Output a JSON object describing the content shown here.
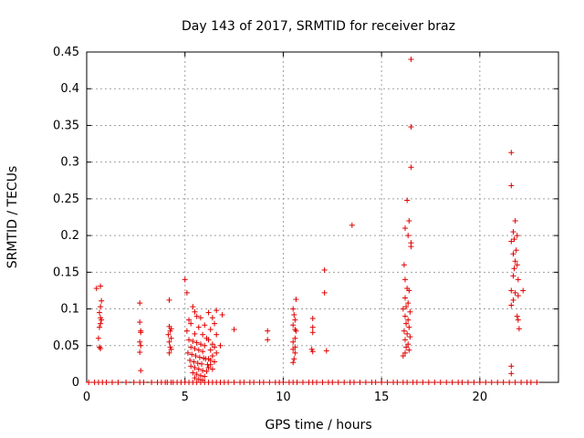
{
  "chart_data": {
    "type": "scatter",
    "title": "Day 143 of 2017, SRMTID for receiver braz",
    "xlabel": "GPS time / hours",
    "ylabel": "SRMTID / TECUs",
    "xlim": [
      0,
      24
    ],
    "ylim": [
      0,
      0.45
    ],
    "xticks": [
      0,
      5,
      10,
      15,
      20
    ],
    "yticks": [
      0,
      0.05,
      0.1,
      0.15,
      0.2,
      0.25,
      0.3,
      0.35,
      0.4,
      0.45
    ],
    "xtick_labels": [
      "0",
      "5",
      "10",
      "15",
      "20"
    ],
    "ytick_labels": [
      "0",
      "0.05",
      "0.1",
      "0.15",
      "0.2",
      "0.25",
      "0.3",
      "0.35",
      "0.4",
      "0.45"
    ],
    "grid": true,
    "marker": "+",
    "series": [
      {
        "name": "SRMTID",
        "color": "#e00000",
        "points": [
          [
            0.5,
            0.128
          ],
          [
            0.7,
            0.131
          ],
          [
            0.75,
            0.111
          ],
          [
            0.7,
            0.103
          ],
          [
            0.65,
            0.095
          ],
          [
            0.7,
            0.088
          ],
          [
            0.75,
            0.085
          ],
          [
            0.7,
            0.08
          ],
          [
            0.65,
            0.075
          ],
          [
            0.6,
            0.06
          ],
          [
            0.65,
            0.048
          ],
          [
            0.7,
            0.046
          ],
          [
            2.7,
            0.108
          ],
          [
            2.7,
            0.082
          ],
          [
            2.75,
            0.07
          ],
          [
            2.75,
            0.068
          ],
          [
            2.7,
            0.055
          ],
          [
            2.75,
            0.05
          ],
          [
            2.7,
            0.041
          ],
          [
            2.75,
            0.016
          ],
          [
            4.2,
            0.112
          ],
          [
            4.2,
            0.076
          ],
          [
            4.3,
            0.073
          ],
          [
            4.25,
            0.07
          ],
          [
            4.15,
            0.065
          ],
          [
            4.3,
            0.06
          ],
          [
            4.2,
            0.055
          ],
          [
            4.25,
            0.048
          ],
          [
            4.3,
            0.045
          ],
          [
            4.2,
            0.04
          ],
          [
            5.0,
            0.14
          ],
          [
            5.1,
            0.122
          ],
          [
            5.4,
            0.103
          ],
          [
            5.5,
            0.096
          ],
          [
            5.6,
            0.09
          ],
          [
            5.2,
            0.085
          ],
          [
            5.3,
            0.08
          ],
          [
            5.8,
            0.088
          ],
          [
            6.0,
            0.078
          ],
          [
            5.7,
            0.075
          ],
          [
            5.1,
            0.07
          ],
          [
            5.5,
            0.066
          ],
          [
            5.9,
            0.065
          ],
          [
            6.1,
            0.06
          ],
          [
            5.2,
            0.058
          ],
          [
            5.4,
            0.056
          ],
          [
            5.6,
            0.054
          ],
          [
            5.8,
            0.052
          ],
          [
            6.0,
            0.05
          ],
          [
            5.3,
            0.048
          ],
          [
            5.5,
            0.046
          ],
          [
            5.7,
            0.044
          ],
          [
            5.9,
            0.042
          ],
          [
            5.15,
            0.04
          ],
          [
            5.35,
            0.038
          ],
          [
            5.55,
            0.036
          ],
          [
            5.75,
            0.034
          ],
          [
            5.95,
            0.033
          ],
          [
            6.05,
            0.032
          ],
          [
            5.25,
            0.03
          ],
          [
            5.45,
            0.028
          ],
          [
            5.65,
            0.026
          ],
          [
            5.85,
            0.025
          ],
          [
            6.15,
            0.024
          ],
          [
            5.3,
            0.022
          ],
          [
            5.5,
            0.02
          ],
          [
            5.7,
            0.018
          ],
          [
            5.9,
            0.016
          ],
          [
            6.1,
            0.015
          ],
          [
            5.4,
            0.013
          ],
          [
            5.6,
            0.011
          ],
          [
            5.8,
            0.009
          ],
          [
            6.0,
            0.008
          ],
          [
            5.5,
            0.006
          ],
          [
            5.7,
            0.004
          ],
          [
            5.9,
            0.003
          ],
          [
            6.2,
            0.02
          ],
          [
            6.3,
            0.03
          ],
          [
            6.2,
            0.095
          ],
          [
            6.4,
            0.088
          ],
          [
            6.5,
            0.08
          ],
          [
            6.3,
            0.072
          ],
          [
            6.6,
            0.065
          ],
          [
            6.2,
            0.058
          ],
          [
            6.4,
            0.052
          ],
          [
            6.5,
            0.048
          ],
          [
            6.3,
            0.044
          ],
          [
            6.6,
            0.04
          ],
          [
            6.4,
            0.036
          ],
          [
            6.2,
            0.032
          ],
          [
            6.5,
            0.028
          ],
          [
            6.3,
            0.024
          ],
          [
            6.4,
            0.018
          ],
          [
            6.6,
            0.098
          ],
          [
            6.9,
            0.092
          ],
          [
            6.8,
            0.05
          ],
          [
            7.5,
            0.072
          ],
          [
            9.2,
            0.07
          ],
          [
            9.2,
            0.058
          ],
          [
            10.5,
            0.1
          ],
          [
            10.6,
            0.085
          ],
          [
            10.5,
            0.078
          ],
          [
            10.6,
            0.072
          ],
          [
            10.65,
            0.07
          ],
          [
            10.6,
            0.06
          ],
          [
            10.5,
            0.055
          ],
          [
            10.6,
            0.048
          ],
          [
            10.5,
            0.045
          ],
          [
            10.6,
            0.04
          ],
          [
            10.55,
            0.032
          ],
          [
            10.5,
            0.027
          ],
          [
            10.65,
            0.113
          ],
          [
            10.55,
            0.092
          ],
          [
            11.5,
            0.087
          ],
          [
            11.5,
            0.075
          ],
          [
            11.5,
            0.068
          ],
          [
            11.45,
            0.045
          ],
          [
            11.5,
            0.042
          ],
          [
            12.1,
            0.153
          ],
          [
            12.1,
            0.122
          ],
          [
            12.2,
            0.043
          ],
          [
            13.5,
            0.214
          ],
          [
            16.5,
            0.44
          ],
          [
            16.5,
            0.348
          ],
          [
            16.5,
            0.293
          ],
          [
            16.3,
            0.248
          ],
          [
            16.4,
            0.22
          ],
          [
            16.2,
            0.21
          ],
          [
            16.35,
            0.2
          ],
          [
            16.5,
            0.19
          ],
          [
            16.5,
            0.185
          ],
          [
            16.15,
            0.16
          ],
          [
            16.2,
            0.14
          ],
          [
            16.3,
            0.128
          ],
          [
            16.4,
            0.125
          ],
          [
            16.2,
            0.115
          ],
          [
            16.35,
            0.108
          ],
          [
            16.25,
            0.103
          ],
          [
            16.1,
            0.1
          ],
          [
            16.45,
            0.096
          ],
          [
            16.2,
            0.09
          ],
          [
            16.35,
            0.085
          ],
          [
            16.25,
            0.08
          ],
          [
            16.4,
            0.075
          ],
          [
            16.15,
            0.07
          ],
          [
            16.3,
            0.066
          ],
          [
            16.45,
            0.062
          ],
          [
            16.2,
            0.058
          ],
          [
            16.35,
            0.052
          ],
          [
            16.25,
            0.048
          ],
          [
            16.4,
            0.044
          ],
          [
            16.2,
            0.04
          ],
          [
            16.1,
            0.036
          ],
          [
            21.6,
            0.313
          ],
          [
            21.6,
            0.268
          ],
          [
            21.8,
            0.22
          ],
          [
            21.7,
            0.205
          ],
          [
            21.9,
            0.2
          ],
          [
            21.75,
            0.195
          ],
          [
            21.6,
            0.192
          ],
          [
            21.85,
            0.18
          ],
          [
            21.7,
            0.175
          ],
          [
            21.8,
            0.165
          ],
          [
            21.9,
            0.16
          ],
          [
            21.75,
            0.155
          ],
          [
            21.7,
            0.145
          ],
          [
            21.95,
            0.14
          ],
          [
            21.6,
            0.125
          ],
          [
            21.8,
            0.122
          ],
          [
            21.95,
            0.118
          ],
          [
            22.2,
            0.125
          ],
          [
            21.7,
            0.112
          ],
          [
            21.6,
            0.105
          ],
          [
            21.9,
            0.09
          ],
          [
            21.95,
            0.085
          ],
          [
            22.0,
            0.073
          ],
          [
            21.6,
            0.022
          ],
          [
            21.6,
            0.012
          ]
        ],
        "zero_points_x": [
          0.1,
          0.4,
          0.6,
          0.8,
          1.0,
          1.3,
          1.6,
          2.0,
          2.4,
          2.7,
          2.9,
          3.3,
          3.6,
          3.8,
          4.0,
          4.1,
          4.3,
          4.4,
          4.6,
          4.8,
          5.0,
          5.2,
          5.4,
          5.6,
          5.8,
          6.0,
          6.2,
          6.4,
          6.6,
          6.8,
          7.0,
          7.2,
          7.5,
          7.8,
          8.0,
          8.3,
          8.5,
          8.8,
          9.0,
          9.3,
          9.6,
          9.8,
          10.0,
          10.3,
          10.5,
          10.7,
          11.0,
          11.3,
          11.5,
          11.7,
          12.0,
          12.3,
          12.5,
          12.8,
          13.1,
          13.4,
          13.6,
          13.9,
          14.2,
          14.5,
          14.7,
          15.0,
          15.3,
          15.6,
          15.8,
          16.1,
          16.3,
          16.6,
          16.8,
          17.1,
          17.4,
          17.7,
          18.0,
          18.3,
          18.6,
          18.9,
          19.1,
          19.4,
          19.7,
          20.0,
          20.3,
          20.6,
          20.9,
          21.2,
          21.5,
          21.8,
          22.1,
          22.4,
          22.6,
          22.9
        ]
      }
    ]
  }
}
